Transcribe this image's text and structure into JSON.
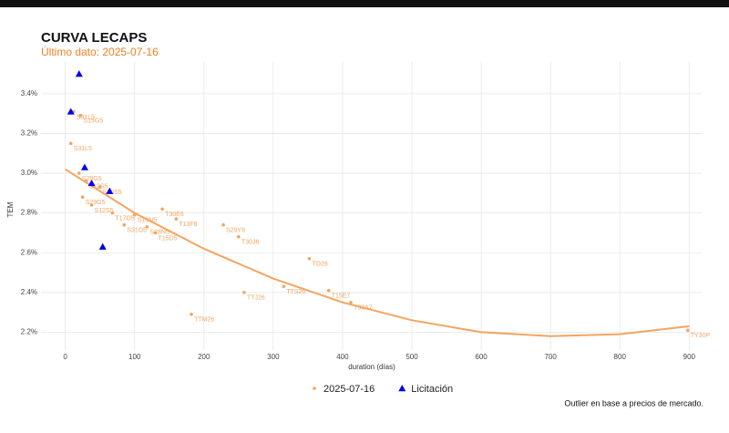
{
  "chart_data": {
    "type": "scatter",
    "title": "CURVA LECAPS",
    "subtitle": "Último dato: 2025-07-16",
    "x_label": "duration (días)",
    "y_label": "TEM",
    "caption": "Outlier en base a precios de mercado.",
    "xlim": [
      -35,
      918
    ],
    "xticks": [
      0,
      100,
      200,
      300,
      400,
      500,
      600,
      700,
      800,
      900
    ],
    "ylim": [
      2.11,
      3.56
    ],
    "yticks": [
      {
        "value": 2.2,
        "label": "2.2%"
      },
      {
        "value": 2.4,
        "label": "2.4%"
      },
      {
        "value": 2.6,
        "label": "2.6%"
      },
      {
        "value": 2.8,
        "label": "2.8%"
      },
      {
        "value": 3.0,
        "label": "3.0%"
      },
      {
        "value": 3.2,
        "label": "3.2%"
      },
      {
        "value": 3.4,
        "label": "3.4%"
      }
    ],
    "grid": true,
    "legend": "bottom",
    "series": [
      {
        "name": "2025-07-16",
        "color": "#f4a460",
        "marker": "circle",
        "labels": [
          "S31L5",
          "S15G5",
          "S31L5",
          "S29G5",
          "S12S5",
          "S30S5",
          "S29G5",
          "S12S5",
          "T17O5",
          "S10N5",
          "S31O5",
          "S28N5",
          "T15D5",
          "T30E6",
          "T13F6",
          "S29Y6",
          "T30J6",
          "TO26",
          "TTJ26",
          "TTS26",
          "TTM26",
          "T15E7",
          "T30A7",
          "TY30P"
        ],
        "x": [
          12,
          22,
          8,
          20,
          30,
          50,
          25,
          38,
          68,
          100,
          85,
          118,
          130,
          140,
          160,
          228,
          250,
          352,
          258,
          315,
          182,
          380,
          412,
          898
        ],
        "values": [
          3.31,
          3.29,
          3.15,
          3.0,
          2.96,
          2.93,
          2.88,
          2.84,
          2.8,
          2.79,
          2.74,
          2.73,
          2.7,
          2.82,
          2.77,
          2.74,
          2.68,
          2.57,
          2.4,
          2.43,
          2.29,
          2.41,
          2.35,
          2.21
        ]
      },
      {
        "name": "Licitación",
        "color": "#0000ee",
        "marker": "triangle",
        "x": [
          20,
          8,
          28,
          38,
          64,
          54
        ],
        "values": [
          3.5,
          3.31,
          3.03,
          2.95,
          2.91,
          2.63
        ]
      }
    ],
    "trend": {
      "color": "#f4a460",
      "x": [
        0,
        100,
        200,
        300,
        400,
        500,
        600,
        700,
        800,
        900
      ],
      "values": [
        3.02,
        2.8,
        2.62,
        2.47,
        2.35,
        2.26,
        2.2,
        2.18,
        2.19,
        2.23
      ]
    }
  }
}
